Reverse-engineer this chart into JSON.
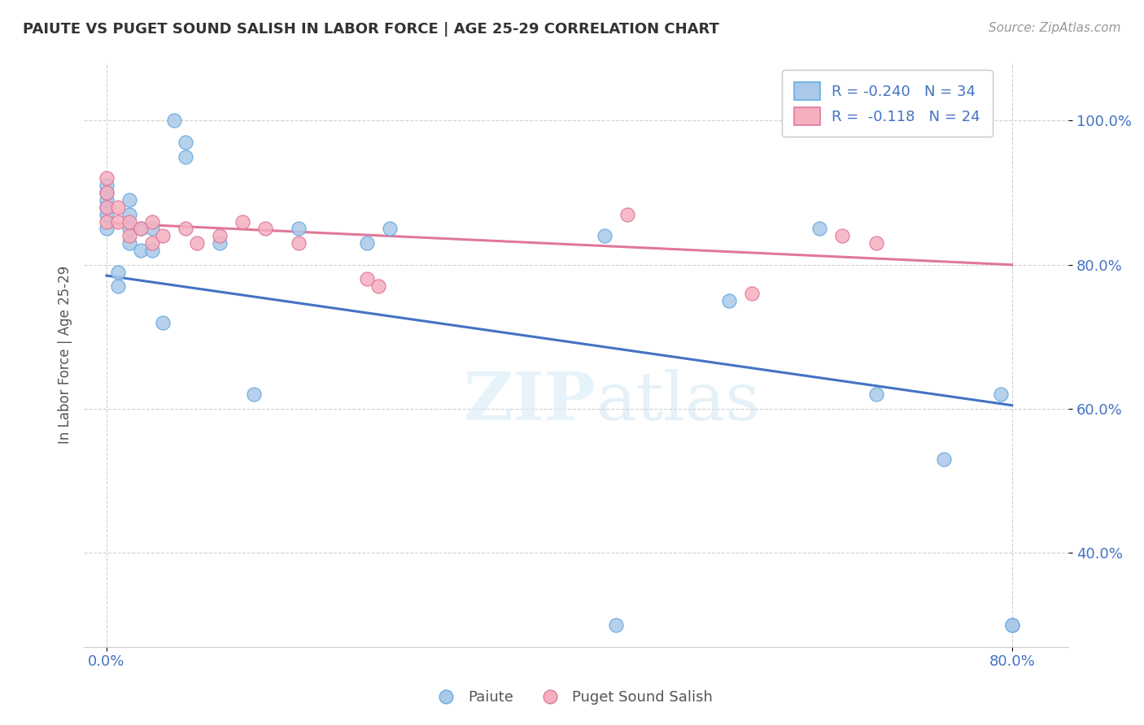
{
  "title": "PAIUTE VS PUGET SOUND SALISH IN LABOR FORCE | AGE 25-29 CORRELATION CHART",
  "source": "Source: ZipAtlas.com",
  "ylabel": "In Labor Force | Age 25-29",
  "xlim": [
    -0.02,
    0.85
  ],
  "ylim": [
    0.27,
    1.08
  ],
  "x_ticks": [
    0.0,
    0.8
  ],
  "x_tick_labels": [
    "0.0%",
    "80.0%"
  ],
  "y_ticks": [
    0.4,
    0.6,
    0.8,
    1.0
  ],
  "y_tick_labels": [
    "40.0%",
    "60.0%",
    "80.0%",
    "100.0%"
  ],
  "paiute_color": "#aac9e8",
  "salish_color": "#f5b0c0",
  "paiute_edge_color": "#6aabe0",
  "salish_edge_color": "#e07898",
  "paiute_line_color": "#4472c4",
  "salish_line_color": "#e07898",
  "R_paiute": -0.24,
  "N_paiute": 34,
  "R_salish": -0.118,
  "N_salish": 24,
  "paiute_x": [
    0.0,
    0.0,
    0.0,
    0.0,
    0.0,
    0.0,
    0.01,
    0.01,
    0.02,
    0.02,
    0.02,
    0.02,
    0.03,
    0.03,
    0.04,
    0.04,
    0.05,
    0.06,
    0.07,
    0.07,
    0.1,
    0.13,
    0.17,
    0.23,
    0.25,
    0.44,
    0.45,
    0.55,
    0.63,
    0.68,
    0.74,
    0.79,
    0.8,
    0.8
  ],
  "paiute_y": [
    0.85,
    0.87,
    0.88,
    0.89,
    0.9,
    0.91,
    0.77,
    0.79,
    0.83,
    0.85,
    0.87,
    0.89,
    0.82,
    0.85,
    0.82,
    0.85,
    0.72,
    1.0,
    0.95,
    0.97,
    0.83,
    0.62,
    0.85,
    0.83,
    0.85,
    0.84,
    0.3,
    0.75,
    0.85,
    0.62,
    0.53,
    0.62,
    0.3,
    0.3
  ],
  "salish_x": [
    0.0,
    0.0,
    0.0,
    0.0,
    0.01,
    0.01,
    0.02,
    0.02,
    0.03,
    0.04,
    0.04,
    0.05,
    0.07,
    0.08,
    0.1,
    0.12,
    0.14,
    0.17,
    0.23,
    0.24,
    0.46,
    0.57,
    0.65,
    0.68
  ],
  "salish_y": [
    0.86,
    0.88,
    0.9,
    0.92,
    0.86,
    0.88,
    0.84,
    0.86,
    0.85,
    0.83,
    0.86,
    0.84,
    0.85,
    0.83,
    0.84,
    0.86,
    0.85,
    0.83,
    0.78,
    0.77,
    0.87,
    0.76,
    0.84,
    0.83
  ],
  "watermark_zip": "ZIP",
  "watermark_atlas": "atlas",
  "legend_label_paiute": "Paiute",
  "legend_label_salish": "Puget Sound Salish",
  "background_color": "#ffffff",
  "grid_color": "#cccccc",
  "text_color": "#4472c4",
  "title_color": "#333333",
  "ylabel_color": "#555555"
}
